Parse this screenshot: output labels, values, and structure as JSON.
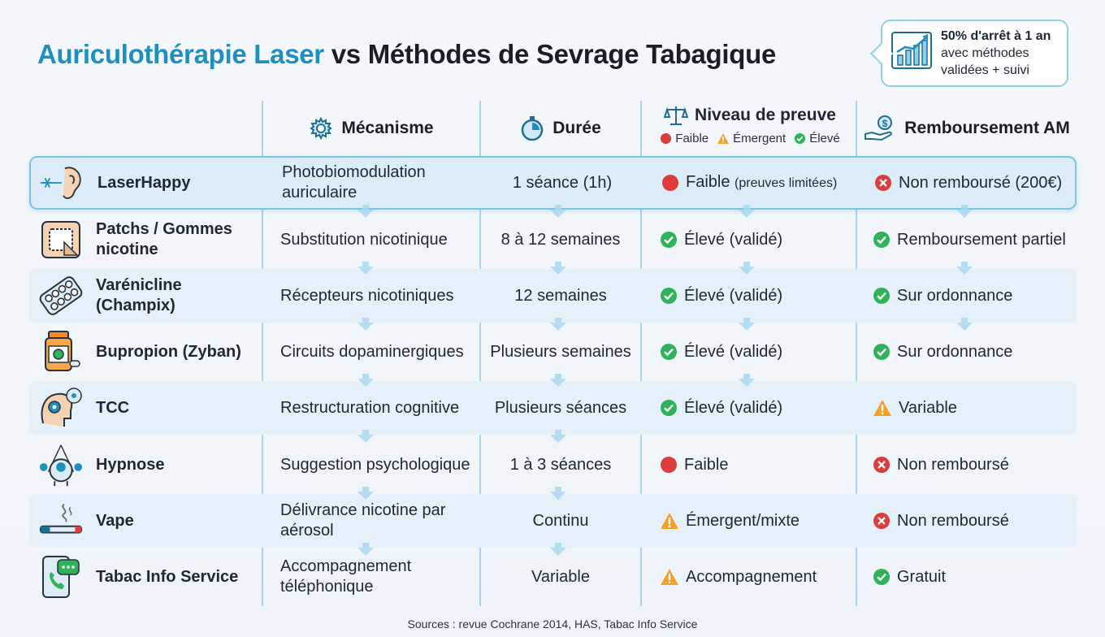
{
  "title": {
    "accent": "Auriculothérapie Laser",
    "rest": "vs Méthodes de Sevrage Tabagique"
  },
  "callout": {
    "line1": "50% d'arrêt à 1 an",
    "line2": "avec méthodes",
    "line3": "validées + suivi",
    "icon": "growth-chart-icon"
  },
  "headers": {
    "mechanism": "Mécanisme",
    "duration": "Durée",
    "evidence": "Niveau de preuve",
    "reimbursement": "Remboursement AM"
  },
  "legend": [
    {
      "label": "Faible",
      "status": "low"
    },
    {
      "label": "Émergent",
      "status": "warn"
    },
    {
      "label": "Élevé",
      "status": "ok"
    }
  ],
  "colors": {
    "accent": "#1f8fc2",
    "ok": "#2fb35a",
    "warn": "#f2a22c",
    "low": "#de3c3c",
    "highlight_border": "#7cc3e6"
  },
  "rows": [
    {
      "name": "LaserHappy",
      "icon": "laser-ear-icon",
      "mechanism": "Photobiomodulation auriculaire",
      "duration": "1 séance (1h)",
      "evidence": "Faible",
      "evidence_note": "(preuves limitées)",
      "evidence_status": "low",
      "reimbursement": "Non remboursé (200€)",
      "reimbursement_status": "no"
    },
    {
      "name": "Patchs / Gommes nicotine",
      "icon": "patch-icon",
      "mechanism": "Substitution nicotinique",
      "duration": "8 à 12 semaines",
      "evidence": "Élevé (validé)",
      "evidence_note": "",
      "evidence_status": "ok",
      "reimbursement": "Remboursement partiel",
      "reimbursement_status": "ok"
    },
    {
      "name": "Varénicline (Champix)",
      "icon": "pill-blister-icon",
      "mechanism": "Récepteurs nicotiniques",
      "duration": "12 semaines",
      "evidence": "Élevé (validé)",
      "evidence_note": "",
      "evidence_status": "ok",
      "reimbursement": "Sur ordonnance",
      "reimbursement_status": "ok"
    },
    {
      "name": "Bupropion (Zyban)",
      "icon": "pill-bottle-icon",
      "mechanism": "Circuits dopaminergiques",
      "duration": "Plusieurs semaines",
      "evidence": "Élevé (validé)",
      "evidence_note": "",
      "evidence_status": "ok",
      "reimbursement": "Sur ordonnance",
      "reimbursement_status": "ok"
    },
    {
      "name": "TCC",
      "icon": "brain-gear-icon",
      "mechanism": "Restructuration cognitive",
      "duration": "Plusieurs séances",
      "evidence": "Élevé (validé)",
      "evidence_note": "",
      "evidence_status": "ok",
      "reimbursement": "Variable",
      "reimbursement_status": "warn"
    },
    {
      "name": "Hypnose",
      "icon": "hypnosis-head-icon",
      "mechanism": "Suggestion psychologique",
      "duration": "1 à 3 séances",
      "evidence": "Faible",
      "evidence_note": "",
      "evidence_status": "low",
      "reimbursement": "Non remboursé",
      "reimbursement_status": "no"
    },
    {
      "name": "Vape",
      "icon": "vape-icon",
      "mechanism": "Délivrance nicotine par aérosol",
      "duration": "Continu",
      "evidence": "Émergent/mixte",
      "evidence_note": "",
      "evidence_status": "warn",
      "reimbursement": "Non remboursé",
      "reimbursement_status": "no"
    },
    {
      "name": "Tabac Info Service",
      "icon": "phone-chat-icon",
      "mechanism": "Accompagnement téléphonique",
      "duration": "Variable",
      "evidence": "Accompagnement",
      "evidence_note": "",
      "evidence_status": "warn",
      "reimbursement": "Gratuit",
      "reimbursement_status": "ok"
    }
  ],
  "sources": "Sources : revue Cochrane 2014, HAS, Tabac Info Service"
}
